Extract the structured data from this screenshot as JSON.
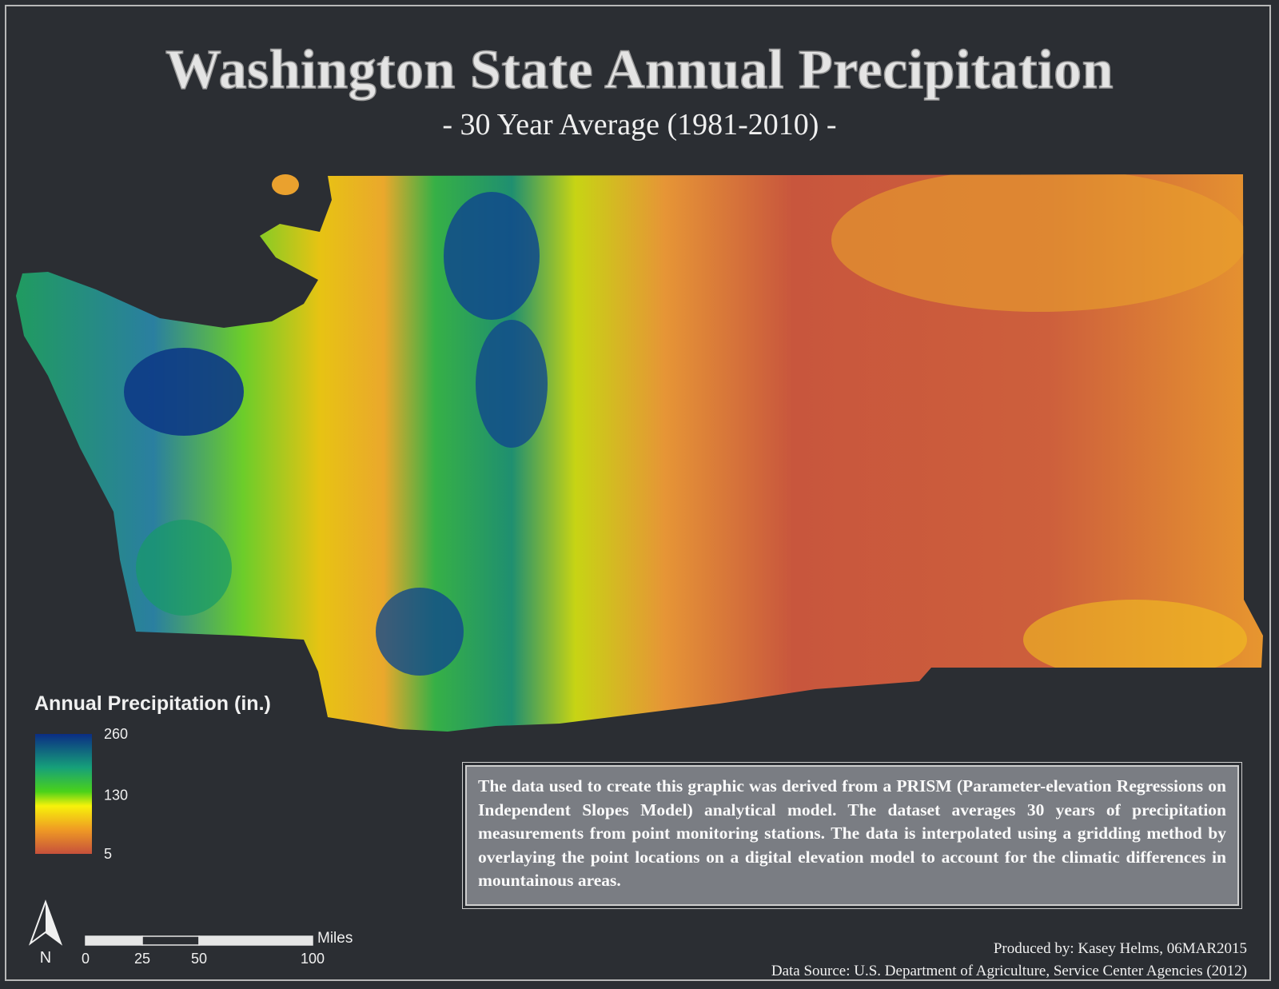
{
  "header": {
    "title": "Washington State Annual Precipitation",
    "subtitle": "- 30 Year Average (1981-2010) -"
  },
  "legend": {
    "title": "Annual Precipitation (in.)",
    "ticks": [
      260,
      130,
      5
    ]
  },
  "scale_bar": {
    "unit": "Miles",
    "ticks": [
      0,
      25,
      50,
      100
    ]
  },
  "north_arrow": {
    "label": "N"
  },
  "description": "The data used to create this graphic was derived from a PRISM (Parameter-elevation Regressions on Independent Slopes Model) analytical model. The dataset averages 30 years of precipitation measurements from point monitoring stations. The  data is interpolated using a gridding method by overlaying the point locations on a digital elevation model to account for the climatic differences in mountainous areas.",
  "credits": {
    "produced_by": "Produced by: Kasey Helms, 06MAR2015",
    "data_source": "Data Source: U.S. Department of Agriculture, Service Center Agencies (2012)"
  }
}
